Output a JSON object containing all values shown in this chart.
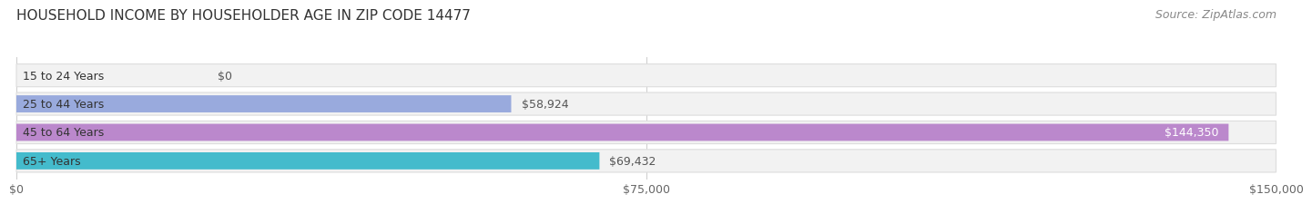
{
  "title": "HOUSEHOLD INCOME BY HOUSEHOLDER AGE IN ZIP CODE 14477",
  "source": "Source: ZipAtlas.com",
  "categories": [
    "15 to 24 Years",
    "25 to 44 Years",
    "45 to 64 Years",
    "65+ Years"
  ],
  "values": [
    0,
    58924,
    144350,
    69432
  ],
  "bar_colors": [
    "#e89090",
    "#99aadd",
    "#bb88cc",
    "#44bbcc"
  ],
  "label_colors": [
    "#555555",
    "#555555",
    "#ffffff",
    "#555555"
  ],
  "xlim": [
    0,
    150000
  ],
  "xticks": [
    0,
    75000,
    150000
  ],
  "xtick_labels": [
    "$0",
    "$75,000",
    "$150,000"
  ],
  "value_labels": [
    "$0",
    "$58,924",
    "$144,350",
    "$69,432"
  ],
  "title_fontsize": 11,
  "source_fontsize": 9,
  "label_fontsize": 9,
  "tick_fontsize": 9,
  "category_fontsize": 9,
  "background_color": "#ffffff",
  "row_bg_color": "#f2f2f2",
  "row_border_color": "#dddddd"
}
